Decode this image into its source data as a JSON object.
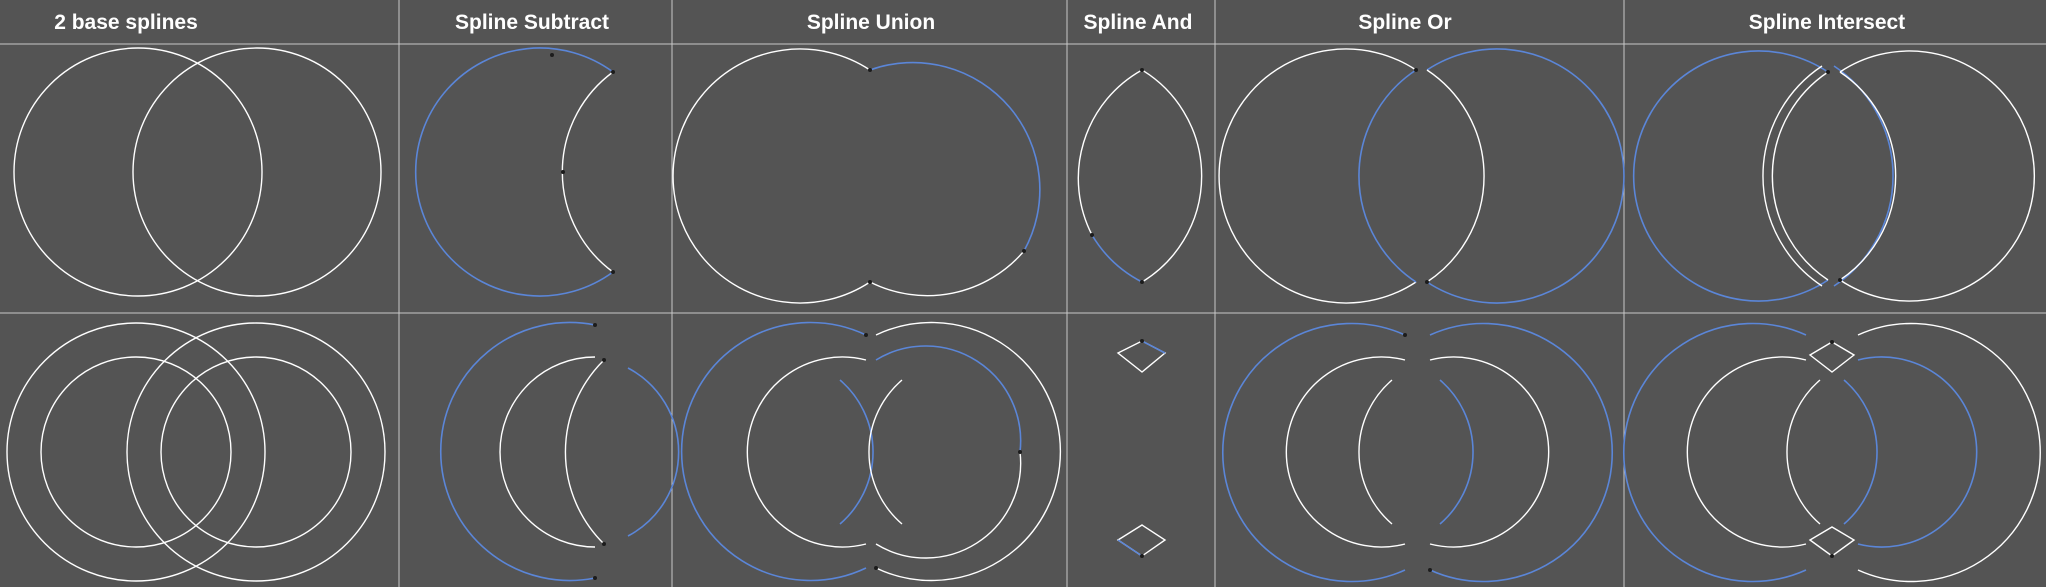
{
  "columns": [
    {
      "key": "base",
      "label": "2 base splines"
    },
    {
      "key": "subtract",
      "label": "Spline Subtract"
    },
    {
      "key": "union",
      "label": "Spline Union"
    },
    {
      "key": "and",
      "label": "Spline And"
    },
    {
      "key": "or",
      "label": "Spline Or"
    },
    {
      "key": "intersect",
      "label": "Spline Intersect"
    }
  ],
  "colors": {
    "background": "#545454",
    "grid": "#c9c9c9",
    "spline_primary": "#ffffff",
    "spline_secondary": "#5b86d8",
    "vertex": "#1c1c1c"
  }
}
